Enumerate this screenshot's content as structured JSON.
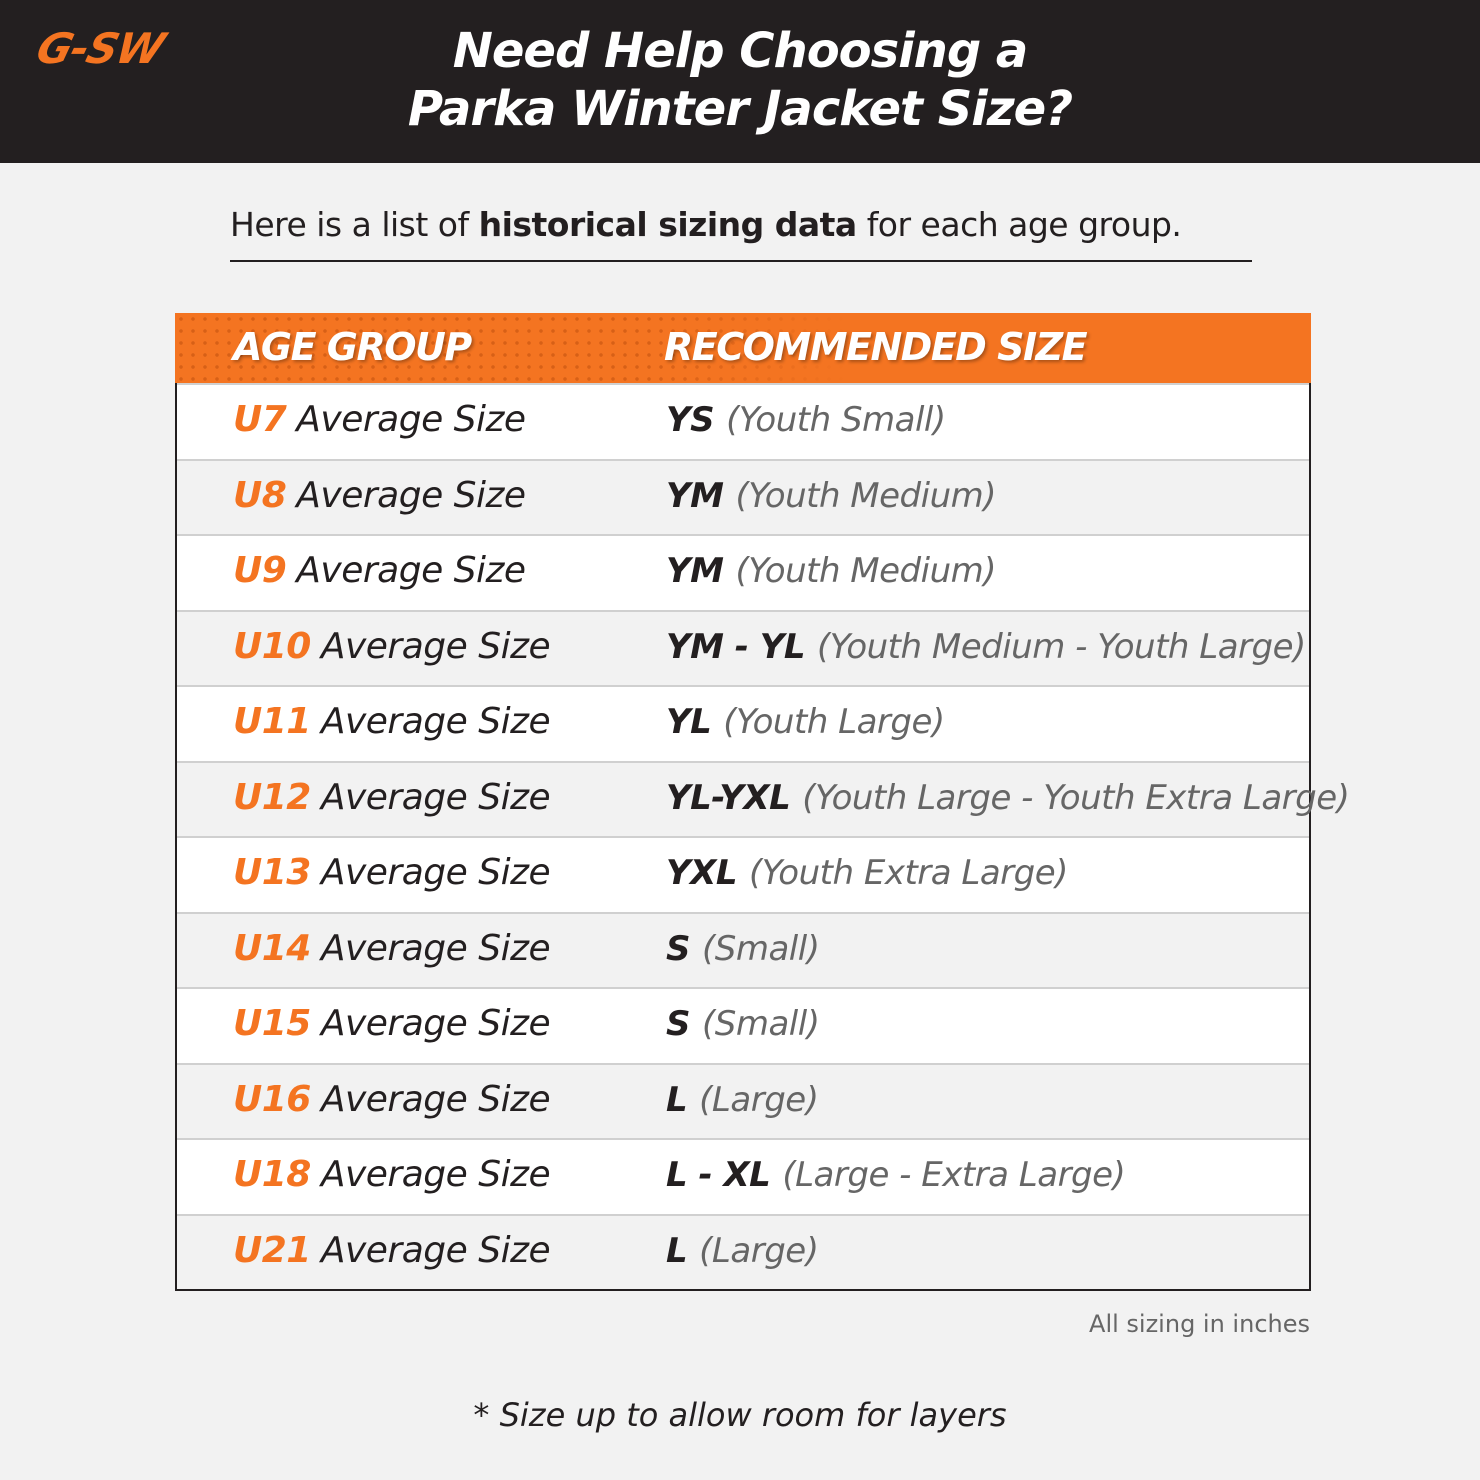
{
  "brand": {
    "logo": "G-SW",
    "accent": "#f47421",
    "dark": "#231f20"
  },
  "header": {
    "title_line1": "Need Help Choosing a",
    "title_line2": "Parka Winter Jacket Size?"
  },
  "intro": {
    "prefix": "Here is a list of ",
    "bold": "historical sizing data",
    "suffix": " for each age group."
  },
  "table": {
    "columns": [
      "AGE GROUP",
      "RECOMMENDED SIZE"
    ],
    "rows": [
      {
        "code": "U7",
        "label": "Average Size",
        "abbr": "YS",
        "full": "(Youth Small)"
      },
      {
        "code": "U8",
        "label": "Average Size",
        "abbr": "YM",
        "full": "(Youth Medium)"
      },
      {
        "code": "U9",
        "label": "Average Size",
        "abbr": "YM",
        "full": "(Youth Medium)"
      },
      {
        "code": "U10",
        "label": "Average Size",
        "abbr": "YM - YL",
        "full": "(Youth Medium - Youth Large)"
      },
      {
        "code": "U11",
        "label": "Average Size",
        "abbr": "YL",
        "full": "(Youth Large)"
      },
      {
        "code": "U12",
        "label": "Average Size",
        "abbr": "YL-YXL",
        "full": "(Youth Large - Youth Extra Large)"
      },
      {
        "code": "U13",
        "label": "Average Size",
        "abbr": "YXL",
        "full": "(Youth Extra Large)"
      },
      {
        "code": "U14",
        "label": "Average Size",
        "abbr": "S",
        "full": "(Small)"
      },
      {
        "code": "U15",
        "label": "Average Size",
        "abbr": "S",
        "full": "(Small)"
      },
      {
        "code": "U16",
        "label": "Average Size",
        "abbr": "L",
        "full": "(Large)"
      },
      {
        "code": "U18",
        "label": "Average Size",
        "abbr": "L - XL",
        "full": "(Large - Extra Large)"
      },
      {
        "code": "U21",
        "label": "Average Size",
        "abbr": "L",
        "full": "(Large)"
      }
    ]
  },
  "note": "All sizing in inches",
  "footer": "* Size up to allow room for layers"
}
